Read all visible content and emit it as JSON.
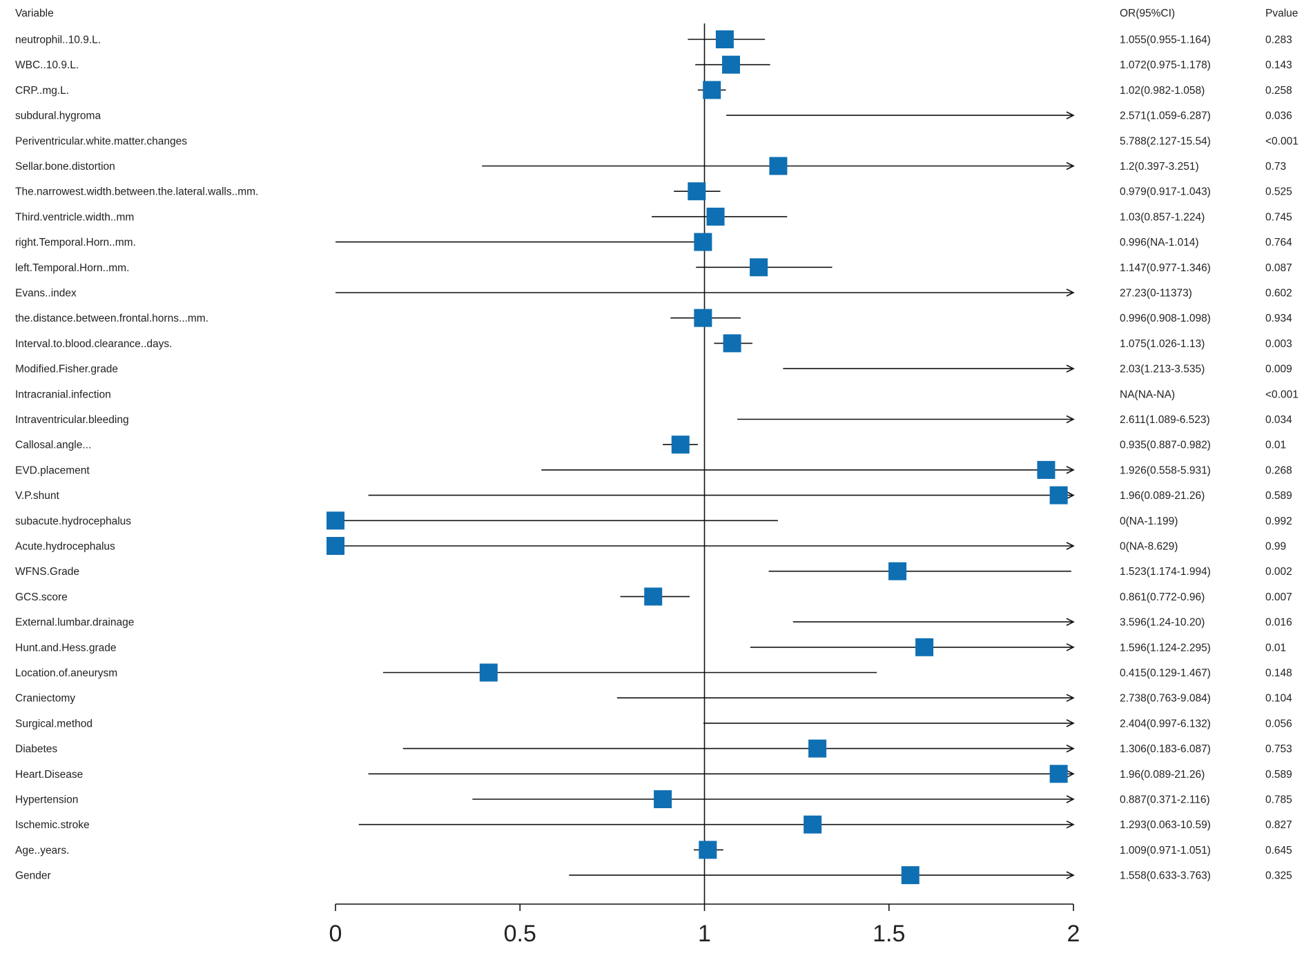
{
  "chart_data": {
    "type": "forest",
    "headers": {
      "variable": "Variable",
      "or": "OR(95%CI)",
      "p": "Pvalue"
    },
    "xlim": [
      0,
      2
    ],
    "xticks": [
      "0",
      "0.5",
      "1",
      "1.5",
      "2"
    ],
    "tick_values": [
      0,
      0.5,
      1,
      1.5,
      2
    ],
    "reference_line": 1,
    "marker_color": "#0f6fb3",
    "rows": [
      {
        "label": "neutrophil..10.9.L.",
        "or": 1.055,
        "lo": 0.955,
        "hi": 1.164,
        "ci_text": "1.055(0.955-1.164)",
        "p": "0.283"
      },
      {
        "label": "WBC..10.9.L.",
        "or": 1.072,
        "lo": 0.975,
        "hi": 1.178,
        "ci_text": "1.072(0.975-1.178)",
        "p": "0.143"
      },
      {
        "label": "CRP..mg.L.",
        "or": 1.02,
        "lo": 0.982,
        "hi": 1.058,
        "ci_text": "1.02(0.982-1.058)",
        "p": "0.258"
      },
      {
        "label": "subdural.hygroma",
        "or": 2.571,
        "lo": 1.059,
        "hi": 6.287,
        "ci_text": "2.571(1.059-6.287)",
        "p": "0.036"
      },
      {
        "label": "Periventricular.white.matter.changes",
        "or": 5.788,
        "lo": 2.127,
        "hi": 15.54,
        "ci_text": "5.788(2.127-15.54)",
        "p": "<0.001"
      },
      {
        "label": "Sellar.bone.distortion",
        "or": 1.2,
        "lo": 0.397,
        "hi": 3.251,
        "ci_text": "1.2(0.397-3.251)",
        "p": "0.73"
      },
      {
        "label": "The.narrowest.width.between.the.lateral.walls..mm.",
        "or": 0.979,
        "lo": 0.917,
        "hi": 1.043,
        "ci_text": "0.979(0.917-1.043)",
        "p": "0.525"
      },
      {
        "label": "Third.ventricle.width..mm",
        "or": 1.03,
        "lo": 0.857,
        "hi": 1.224,
        "ci_text": "1.03(0.857-1.224)",
        "p": "0.745"
      },
      {
        "label": "right.Temporal.Horn..mm.",
        "or": 0.996,
        "lo": null,
        "hi": 1.014,
        "ci_text": "0.996(NA-1.014)",
        "p": "0.764"
      },
      {
        "label": "left.Temporal.Horn..mm.",
        "or": 1.147,
        "lo": 0.977,
        "hi": 1.346,
        "ci_text": "1.147(0.977-1.346)",
        "p": "0.087"
      },
      {
        "label": "Evans..index",
        "or": 27.23,
        "lo": 0,
        "hi": 11373,
        "ci_text": "27.23(0-11373)",
        "p": "0.602"
      },
      {
        "label": "the.distance.between.frontal.horns...mm.",
        "or": 0.996,
        "lo": 0.908,
        "hi": 1.098,
        "ci_text": "0.996(0.908-1.098)",
        "p": "0.934"
      },
      {
        "label": "Interval.to.blood.clearance..days.",
        "or": 1.075,
        "lo": 1.026,
        "hi": 1.13,
        "ci_text": "1.075(1.026-1.13)",
        "p": "0.003"
      },
      {
        "label": "Modified.Fisher.grade",
        "or": 2.03,
        "lo": 1.213,
        "hi": 3.535,
        "ci_text": "2.03(1.213-3.535)",
        "p": "0.009"
      },
      {
        "label": "Intracranial.infection",
        "or": null,
        "lo": null,
        "hi": null,
        "ci_text": "NA(NA-NA)",
        "p": "<0.001"
      },
      {
        "label": "Intraventricular.bleeding",
        "or": 2.611,
        "lo": 1.089,
        "hi": 6.523,
        "ci_text": "2.611(1.089-6.523)",
        "p": "0.034"
      },
      {
        "label": "Callosal.angle...",
        "or": 0.935,
        "lo": 0.887,
        "hi": 0.982,
        "ci_text": "0.935(0.887-0.982)",
        "p": "0.01"
      },
      {
        "label": "EVD.placement",
        "or": 1.926,
        "lo": 0.558,
        "hi": 5.931,
        "ci_text": "1.926(0.558-5.931)",
        "p": "0.268"
      },
      {
        "label": "V.P.shunt",
        "or": 1.96,
        "lo": 0.089,
        "hi": 21.26,
        "ci_text": "1.96(0.089-21.26)",
        "p": "0.589"
      },
      {
        "label": "subacute.hydrocephalus",
        "or": 0,
        "lo": null,
        "hi": 1.199,
        "ci_text": "0(NA-1.199)",
        "p": "0.992"
      },
      {
        "label": "Acute.hydrocephalus",
        "or": 0,
        "lo": null,
        "hi": 8.629,
        "ci_text": "0(NA-8.629)",
        "p": "0.99"
      },
      {
        "label": "WFNS.Grade",
        "or": 1.523,
        "lo": 1.174,
        "hi": 1.994,
        "ci_text": "1.523(1.174-1.994)",
        "p": "0.002"
      },
      {
        "label": "GCS.score",
        "or": 0.861,
        "lo": 0.772,
        "hi": 0.96,
        "ci_text": "0.861(0.772-0.96)",
        "p": "0.007"
      },
      {
        "label": "External.lumbar.drainage",
        "or": 3.596,
        "lo": 1.24,
        "hi": 10.2,
        "ci_text": "3.596(1.24-10.20)",
        "p": "0.016"
      },
      {
        "label": "Hunt.and.Hess.grade",
        "or": 1.596,
        "lo": 1.124,
        "hi": 2.295,
        "ci_text": "1.596(1.124-2.295)",
        "p": "0.01"
      },
      {
        "label": "Location.of.aneurysm",
        "or": 0.415,
        "lo": 0.129,
        "hi": 1.467,
        "ci_text": "0.415(0.129-1.467)",
        "p": "0.148"
      },
      {
        "label": "Craniectomy",
        "or": 2.738,
        "lo": 0.763,
        "hi": 9.084,
        "ci_text": "2.738(0.763-9.084)",
        "p": "0.104"
      },
      {
        "label": "Surgical.method",
        "or": 2.404,
        "lo": 0.997,
        "hi": 6.132,
        "ci_text": "2.404(0.997-6.132)",
        "p": "0.056"
      },
      {
        "label": "Diabetes",
        "or": 1.306,
        "lo": 0.183,
        "hi": 6.087,
        "ci_text": "1.306(0.183-6.087)",
        "p": "0.753"
      },
      {
        "label": "Heart.Disease",
        "or": 1.96,
        "lo": 0.089,
        "hi": 21.26,
        "ci_text": "1.96(0.089-21.26)",
        "p": "0.589"
      },
      {
        "label": "Hypertension",
        "or": 0.887,
        "lo": 0.371,
        "hi": 2.116,
        "ci_text": "0.887(0.371-2.116)",
        "p": "0.785"
      },
      {
        "label": "Ischemic.stroke",
        "or": 1.293,
        "lo": 0.063,
        "hi": 10.59,
        "ci_text": "1.293(0.063-10.59)",
        "p": "0.827"
      },
      {
        "label": "Age..years.",
        "or": 1.009,
        "lo": 0.971,
        "hi": 1.051,
        "ci_text": "1.009(0.971-1.051)",
        "p": "0.645"
      },
      {
        "label": "Gender",
        "or": 1.558,
        "lo": 0.633,
        "hi": 3.763,
        "ci_text": "1.558(0.633-3.763)",
        "p": "0.325"
      }
    ]
  }
}
